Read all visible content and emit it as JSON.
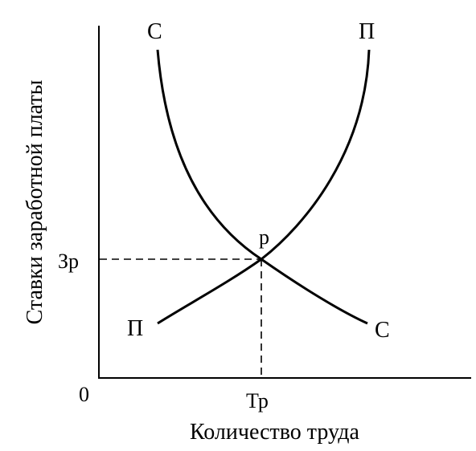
{
  "chart_data": {
    "type": "line",
    "xlabel": "Количество труда",
    "ylabel": "Ставки заработной платы",
    "origin_label": "0",
    "equilibrium": {
      "label": "р",
      "x_label": "Тр",
      "y_label": "Зр"
    },
    "series": [
      {
        "name": "С",
        "start_label": "С",
        "end_label": "С"
      },
      {
        "name": "П",
        "start_label": "П",
        "end_label": "П"
      }
    ],
    "grid": false,
    "legend": "none"
  }
}
